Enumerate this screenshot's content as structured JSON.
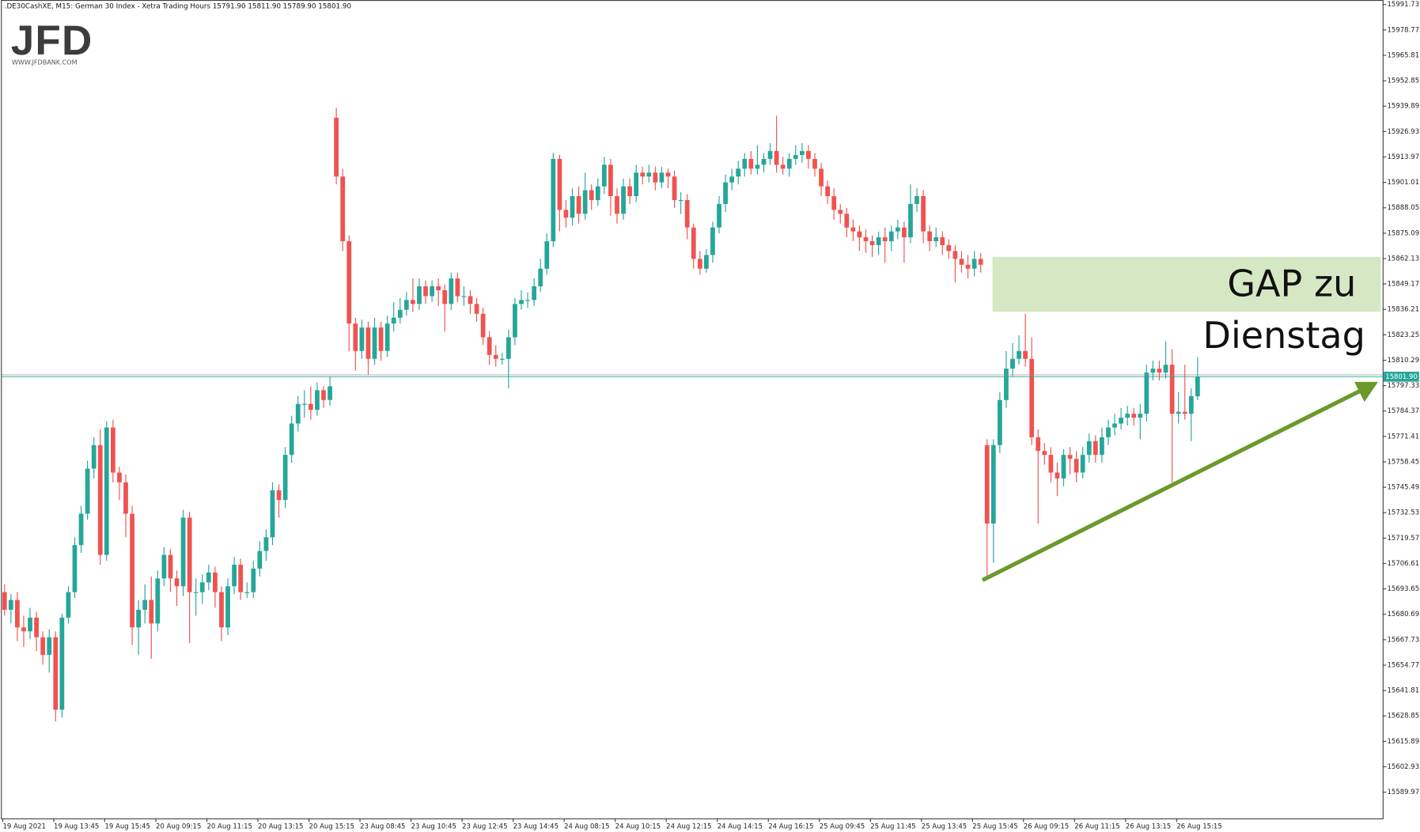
{
  "logo": {
    "text": "JFD",
    "url": "WWW.JFDBANK.COM"
  },
  "chart_data": {
    "type": "candlestick",
    "header": ".DE30CashXE, M15:  German 30 Index  - Xetra Trading Hours  15791.90 15811.90 15789.90 15801.90",
    "up_color": "#26a69a",
    "down_color": "#ef5350",
    "grid": false,
    "ylim": [
      15576.6,
      15994.05
    ],
    "yticks": [
      15991.73,
      15978.77,
      15965.81,
      15952.85,
      15939.89,
      15926.93,
      15913.97,
      15901.01,
      15888.05,
      15875.09,
      15862.13,
      15849.17,
      15836.21,
      15823.25,
      15810.29,
      15797.33,
      15784.37,
      15771.41,
      15758.45,
      15745.49,
      15732.53,
      15719.57,
      15706.61,
      15693.65,
      15680.69,
      15667.73,
      15654.77,
      15641.81,
      15628.85,
      15615.89,
      15602.93,
      15589.97
    ],
    "last_price": {
      "value": 15801.9,
      "label": "15801.90"
    },
    "gap_zone": {
      "from": 15835,
      "to": 15863,
      "color": "#d5e8c4"
    },
    "annotation": [
      "GAP zu",
      "Dienstag"
    ],
    "categories": [
      "19 Aug 2021",
      null,
      null,
      null,
      null,
      null,
      null,
      null,
      "19 Aug 13:45",
      null,
      null,
      null,
      null,
      null,
      null,
      null,
      "19 Aug 15:45",
      null,
      null,
      null,
      null,
      null,
      null,
      null,
      "20 Aug 09:15",
      null,
      null,
      null,
      null,
      null,
      null,
      null,
      "20 Aug 11:15",
      null,
      null,
      null,
      null,
      null,
      null,
      null,
      "20 Aug 13:15",
      null,
      null,
      null,
      null,
      null,
      null,
      null,
      "20 Aug 15:15",
      null,
      null,
      null,
      null,
      null,
      null,
      null,
      "23 Aug 08:45",
      null,
      null,
      null,
      null,
      null,
      null,
      null,
      "23 Aug 10:45",
      null,
      null,
      null,
      null,
      null,
      null,
      null,
      "23 Aug 12:45",
      null,
      null,
      null,
      null,
      null,
      null,
      null,
      "23 Aug 14:45",
      null,
      null,
      null,
      null,
      null,
      null,
      null,
      "24 Aug 08:15",
      null,
      null,
      null,
      null,
      null,
      null,
      null,
      "24 Aug 10:15",
      null,
      null,
      null,
      null,
      null,
      null,
      null,
      "24 Aug 12:15",
      null,
      null,
      null,
      null,
      null,
      null,
      null,
      "24 Aug 14:15",
      null,
      null,
      null,
      null,
      null,
      null,
      null,
      "24 Aug 16:15",
      null,
      null,
      null,
      null,
      null,
      null,
      null,
      "25 Aug 09:45",
      null,
      null,
      null,
      null,
      null,
      null,
      null,
      "25 Aug 11:45",
      null,
      null,
      null,
      null,
      null,
      null,
      null,
      "25 Aug 13:45",
      null,
      null,
      null,
      null,
      null,
      null,
      null,
      "25 Aug 15:45",
      null,
      null,
      null,
      null,
      null,
      null,
      null,
      "26 Aug 09:15",
      null,
      null,
      null,
      null,
      null,
      null,
      null,
      "26 Aug 11:15",
      null,
      null,
      null,
      null,
      null,
      null,
      null,
      "26 Aug 13:15",
      null,
      null,
      null,
      null,
      null,
      null,
      null,
      "26 Aug 15:15",
      null,
      null,
      null
    ],
    "open": [
      15692,
      15683,
      15688,
      15674,
      15672,
      15679,
      15669,
      15660,
      15669,
      15632,
      15679,
      15692,
      15716,
      15732,
      15755,
      15767,
      15711,
      15776,
      15753,
      15748,
      15732,
      15674,
      15683,
      15688,
      15676,
      15699,
      15711,
      15699,
      15695,
      15730,
      15692,
      15692,
      15697,
      15702,
      15692,
      15674,
      15695,
      15706,
      15692,
      15692,
      15704,
      15713,
      15720,
      15744,
      15739,
      15762,
      15778,
      15788,
      15788,
      15785,
      15795,
      15790,
      15934,
      15904,
      15871,
      15829,
      15815,
      15827,
      15811,
      15827,
      15815,
      15829,
      15832,
      15836,
      15841,
      15839,
      15848,
      15843,
      15848,
      15846,
      15839,
      15852,
      15843,
      15843,
      15839,
      15834,
      15822,
      15813,
      15811,
      15811,
      15822,
      15839,
      15841,
      15841,
      15848,
      15857,
      15871,
      15913,
      15887,
      15883,
      15894,
      15885,
      15897,
      15892,
      15899,
      15910,
      15894,
      15885,
      15899,
      15894,
      15906,
      15904,
      15906,
      15901,
      15906,
      15904,
      15892,
      15892,
      15878,
      15862,
      15857,
      15864,
      15878,
      15890,
      15901,
      15904,
      15908,
      15913,
      15908,
      15910,
      15913,
      15917,
      15910,
      15908,
      15913,
      15915,
      15917,
      15913,
      15908,
      15899,
      15894,
      15887,
      15885,
      15878,
      15876,
      15873,
      15871,
      15869,
      15873,
      15871,
      15876,
      15878,
      15873,
      15890,
      15894,
      15876,
      15871,
      15873,
      15869,
      15866,
      15862,
      15859,
      15857,
      15862,
      15767,
      15727,
      15767,
      15790,
      15806,
      15811,
      15815,
      15811,
      15771,
      15764,
      15762,
      15753,
      15750,
      15762,
      15760,
      15753,
      15762,
      15769,
      15762,
      15771,
      15776,
      15778,
      15781,
      15783,
      15781,
      15783,
      15804,
      15806,
      15804,
      15808,
      15783,
      15784,
      15783,
      15791.9
    ],
    "high": [
      15696,
      15691,
      15692,
      15680,
      15684,
      15682,
      15672,
      15673,
      15672,
      15681,
      15695,
      15720,
      15736,
      15759,
      15771,
      15775,
      15779,
      15780,
      15756,
      15752,
      15736,
      15688,
      15696,
      15700,
      15703,
      15715,
      15714,
      15703,
      15734,
      15733,
      15699,
      15701,
      15706,
      15705,
      15695,
      15699,
      15710,
      15709,
      15697,
      15708,
      15718,
      15724,
      15748,
      15747,
      15766,
      15782,
      15792,
      15795,
      15797,
      15799,
      15797,
      15802,
      15939,
      15908,
      15874,
      15832,
      15831,
      15830,
      15832,
      15830,
      15833,
      15840,
      15842,
      15845,
      15852,
      15852,
      15851,
      15851,
      15852,
      15849,
      15855,
      15855,
      15848,
      15846,
      15842,
      15837,
      15825,
      15818,
      15814,
      15826,
      15842,
      15846,
      15845,
      15852,
      15862,
      15875,
      15916,
      15915,
      15892,
      15898,
      15899,
      15906,
      15900,
      15903,
      15914,
      15913,
      15898,
      15903,
      15903,
      15910,
      15909,
      15910,
      15909,
      15909,
      15908,
      15907,
      15896,
      15895,
      15880,
      15866,
      15867,
      15881,
      15894,
      15905,
      15908,
      15912,
      15916,
      15917,
      15920,
      15916,
      15921,
      15935,
      15914,
      15916,
      15920,
      15921,
      15920,
      15916,
      15911,
      15902,
      15898,
      15890,
      15888,
      15882,
      15879,
      15877,
      15874,
      15876,
      15878,
      15879,
      15882,
      15881,
      15900,
      15898,
      15897,
      15879,
      15878,
      15876,
      15872,
      15869,
      15866,
      15864,
      15866,
      15865,
      15770,
      15770,
      15794,
      15815,
      15819,
      15823,
      15834,
      15822,
      15775,
      15768,
      15766,
      15758,
      15765,
      15766,
      15764,
      15766,
      15773,
      15772,
      15776,
      15780,
      15783,
      15786,
      15787,
      15786,
      15788,
      15808,
      15810,
      15810,
      15820,
      15816,
      15794,
      15808,
      15796,
      15811.9
    ],
    "low": [
      15680,
      15676,
      15667,
      15664,
      15668,
      15662,
      15655,
      15651,
      15626,
      15628,
      15676,
      15689,
      15712,
      15729,
      15750,
      15706,
      15708,
      15748,
      15739,
      15720,
      15665,
      15660,
      15676,
      15658,
      15672,
      15695,
      15692,
      15685,
      15690,
      15666,
      15680,
      15686,
      15693,
      15684,
      15667,
      15670,
      15691,
      15688,
      15689,
      15689,
      15700,
      15708,
      15716,
      15730,
      15735,
      15758,
      15774,
      15781,
      15780,
      15782,
      15786,
      15787,
      15900,
      15866,
      15815,
      15805,
      15811,
      15803,
      15808,
      15810,
      15812,
      15825,
      15829,
      15833,
      15835,
      15836,
      15839,
      15840,
      15838,
      15825,
      15836,
      15840,
      15838,
      15834,
      15830,
      15818,
      15808,
      15807,
      15808,
      15796,
      15818,
      15836,
      15837,
      15838,
      15845,
      15854,
      15868,
      15876,
      15878,
      15879,
      15880,
      15882,
      15887,
      15889,
      15895,
      15884,
      15880,
      15882,
      15890,
      15891,
      15900,
      15901,
      15897,
      15898,
      15898,
      15888,
      15885,
      15872,
      15857,
      15854,
      15855,
      15860,
      15875,
      15886,
      15897,
      15900,
      15904,
      15905,
      15905,
      15906,
      15910,
      15906,
      15905,
      15904,
      15910,
      15911,
      15908,
      15904,
      15894,
      15890,
      15882,
      15880,
      15873,
      15871,
      15866,
      15865,
      15863,
      15864,
      15860,
      15866,
      15872,
      15860,
      15870,
      15886,
      15870,
      15866,
      15868,
      15864,
      15862,
      15850,
      15855,
      15852,
      15853,
      15855,
      15700,
      15707,
      15763,
      15786,
      15802,
      15808,
      15807,
      15767,
      15727,
      15757,
      15748,
      15741,
      15746,
      15752,
      15748,
      15750,
      15758,
      15758,
      15758,
      15767,
      15772,
      15775,
      15777,
      15777,
      15770,
      15779,
      15800,
      15800,
      15801,
      15748,
      15778,
      15780,
      15769,
      15789.9
    ],
    "close": [
      15683,
      15688,
      15674,
      15672,
      15679,
      15669,
      15660,
      15669,
      15632,
      15679,
      15692,
      15716,
      15732,
      15755,
      15767,
      15711,
      15776,
      15753,
      15748,
      15732,
      15674,
      15683,
      15688,
      15676,
      15699,
      15711,
      15699,
      15695,
      15730,
      15692,
      15692,
      15697,
      15702,
      15692,
      15674,
      15695,
      15706,
      15692,
      15692,
      15704,
      15713,
      15720,
      15744,
      15739,
      15762,
      15778,
      15788,
      15788,
      15785,
      15795,
      15790,
      15797,
      15904,
      15871,
      15829,
      15815,
      15827,
      15811,
      15827,
      15815,
      15829,
      15832,
      15836,
      15841,
      15839,
      15848,
      15843,
      15848,
      15846,
      15839,
      15852,
      15843,
      15843,
      15839,
      15834,
      15822,
      15813,
      15811,
      15811,
      15822,
      15839,
      15841,
      15841,
      15848,
      15857,
      15871,
      15913,
      15887,
      15883,
      15894,
      15885,
      15897,
      15892,
      15899,
      15910,
      15894,
      15885,
      15899,
      15894,
      15906,
      15904,
      15906,
      15901,
      15906,
      15904,
      15892,
      15892,
      15878,
      15862,
      15857,
      15864,
      15878,
      15890,
      15901,
      15904,
      15908,
      15913,
      15908,
      15910,
      15913,
      15917,
      15910,
      15908,
      15913,
      15915,
      15917,
      15913,
      15908,
      15899,
      15894,
      15887,
      15885,
      15878,
      15876,
      15873,
      15871,
      15869,
      15873,
      15871,
      15876,
      15878,
      15873,
      15890,
      15894,
      15876,
      15871,
      15873,
      15869,
      15866,
      15862,
      15859,
      15857,
      15862,
      15859,
      15727,
      15767,
      15790,
      15806,
      15811,
      15815,
      15811,
      15771,
      15764,
      15762,
      15753,
      15750,
      15762,
      15760,
      15753,
      15762,
      15769,
      15762,
      15771,
      15776,
      15778,
      15781,
      15783,
      15781,
      15783,
      15804,
      15806,
      15804,
      15808,
      15783,
      15784,
      15783,
      15792,
      15801.9
    ]
  }
}
